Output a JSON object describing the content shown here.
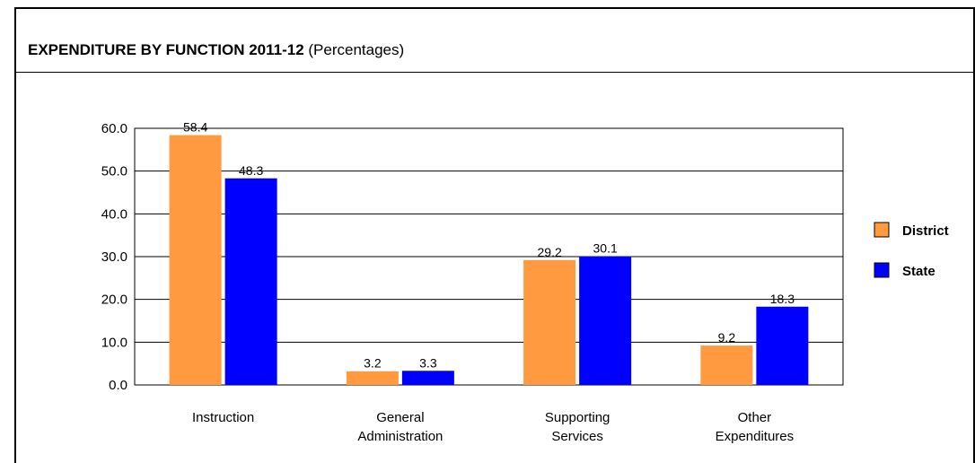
{
  "header": {
    "title_bold": "EXPENDITURE BY FUNCTION 2011-12",
    "title_suffix": " (Percentages)"
  },
  "chart_data": {
    "type": "bar",
    "title": "EXPENDITURE BY FUNCTION 2011-12 (Percentages)",
    "categories": [
      [
        "Instruction"
      ],
      [
        "General",
        "Administration"
      ],
      [
        "Supporting",
        "Services"
      ],
      [
        "Other",
        "Expenditures"
      ]
    ],
    "series": [
      {
        "name": "District",
        "color": "#FF9A40",
        "values": [
          58.4,
          3.2,
          29.2,
          9.2
        ],
        "labels": [
          "58.4",
          "3.2",
          "29.2",
          "9.2"
        ]
      },
      {
        "name": "State",
        "color": "#0000FF",
        "values": [
          48.3,
          3.3,
          30.1,
          18.3
        ],
        "labels": [
          "48.3",
          "3.3",
          "30.1",
          "18.3"
        ]
      }
    ],
    "ylim": [
      0,
      60
    ],
    "yticks": [
      "0.0",
      "10.0",
      "20.0",
      "30.0",
      "40.0",
      "50.0",
      "60.0"
    ],
    "grid": true,
    "legend": "right"
  }
}
